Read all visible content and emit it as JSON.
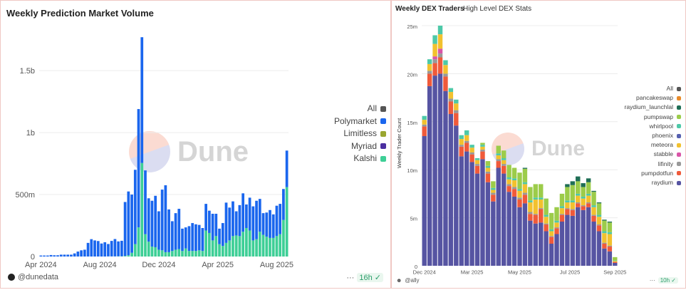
{
  "left": {
    "title": "Weekly Prediction Market Volume",
    "watermark": "Dune",
    "author": "@dunedata",
    "more": "···",
    "refresh": "16h",
    "legend": [
      {
        "name": "All",
        "color": "#555555"
      },
      {
        "name": "Polymarket",
        "color": "#1a66ee"
      },
      {
        "name": "Limitless",
        "color": "#9aa630"
      },
      {
        "name": "Myriad",
        "color": "#4b2fa0"
      },
      {
        "name": "Kalshi",
        "color": "#3ecf96"
      }
    ]
  },
  "right": {
    "title": "Weekly DEX Traders",
    "subtitle": "High Level DEX Stats",
    "watermark": "Dune",
    "author": "@ally",
    "more": "···",
    "refresh": "10h",
    "legend": [
      {
        "name": "All",
        "color": "#555555"
      },
      {
        "name": "pancakeswap",
        "color": "#e88a2a"
      },
      {
        "name": "raydium_launchlal",
        "color": "#1f6e55"
      },
      {
        "name": "pumpswap",
        "color": "#9ccc4a"
      },
      {
        "name": "whirlpool",
        "color": "#4dc9a8"
      },
      {
        "name": "phoenix",
        "color": "#5660b0"
      },
      {
        "name": "meteora",
        "color": "#f2c12e"
      },
      {
        "name": "stabble",
        "color": "#d955a8"
      },
      {
        "name": "lifinity",
        "color": "#999999"
      },
      {
        "name": "pumpdotfun",
        "color": "#f05a3a"
      },
      {
        "name": "raydium",
        "color": "#5654a2"
      }
    ]
  },
  "chart_data": [
    {
      "type": "bar",
      "stacked": true,
      "title": "Weekly Prediction Market Volume",
      "x_start": "2024-04-01",
      "x_interval": "week",
      "xticks": [
        "Apr 2024",
        "Aug 2024",
        "Dec 2024",
        "Apr 2025",
        "Aug 2025"
      ],
      "yticks": [
        "0",
        "500m",
        "1b",
        "1.5b"
      ],
      "ylim": [
        0,
        1800000000
      ],
      "grid": true,
      "legend": "right",
      "series": [
        {
          "name": "Kalshi",
          "color": "#3ecf96",
          "values_m": [
            0,
            0,
            0,
            0,
            0,
            0,
            0,
            0,
            0,
            0,
            0,
            0,
            0,
            0,
            0,
            0,
            0,
            0,
            0,
            0,
            1,
            1,
            1,
            2,
            2,
            5,
            10,
            30,
            100,
            235,
            755,
            180,
            120,
            80,
            75,
            55,
            50,
            35,
            35,
            45,
            55,
            60,
            45,
            65,
            45,
            45,
            45,
            50,
            45,
            210,
            190,
            130,
            165,
            100,
            85,
            110,
            130,
            165,
            170,
            165,
            200,
            230,
            210,
            130,
            140,
            200,
            175,
            160,
            150,
            150,
            165,
            180,
            295,
            560
          ]
        },
        {
          "name": "Polymarket",
          "color": "#1a66ee",
          "values_m": [
            8,
            8,
            8,
            12,
            10,
            10,
            15,
            15,
            15,
            15,
            25,
            40,
            50,
            55,
            110,
            140,
            130,
            125,
            105,
            115,
            100,
            125,
            140,
            120,
            125,
            435,
            515,
            470,
            600,
            955,
            1015,
            515,
            350,
            370,
            415,
            310,
            490,
            540,
            345,
            240,
            295,
            325,
            180,
            170,
            200,
            225,
            215,
            205,
            185,
            215,
            180,
            215,
            180,
            125,
            185,
            325,
            265,
            280,
            195,
            250,
            310,
            190,
            265,
            275,
            310,
            265,
            175,
            195,
            225,
            190,
            245,
            245,
            250,
            295
          ]
        }
      ]
    },
    {
      "type": "bar",
      "stacked": true,
      "title": "Weekly DEX Traders",
      "subtitle": "High Level DEX Stats",
      "ylabel": "Weekly Trader Count",
      "xticks": [
        "Dec 2024",
        "Mar 2025",
        "May 2025",
        "Jul 2025",
        "Sep 2025"
      ],
      "yticks": [
        "0",
        "5m",
        "10m",
        "15m",
        "20m",
        "25m"
      ],
      "ylim": [
        0,
        25000000
      ],
      "grid": true,
      "legend": "right",
      "series": [
        {
          "name": "raydium",
          "color": "#5654a2",
          "values_m": [
            13.5,
            18.7,
            19.8,
            20.0,
            18.2,
            15.8,
            14.6,
            11.4,
            11.9,
            10.8,
            9.6,
            11.1,
            8.7,
            6.7,
            10.2,
            9.6,
            7.7,
            7.2,
            6.1,
            6.5,
            4.7,
            4.4,
            4.5,
            3.6,
            2.3,
            3.3,
            4.6,
            5.3,
            5.2,
            6.1,
            5.8,
            6.1,
            4.6,
            3.6,
            1.8,
            1.5,
            0.3
          ]
        },
        {
          "name": "pumpdotfun",
          "color": "#f05a3a",
          "values_m": [
            1.0,
            1.3,
            1.3,
            1.7,
            1.5,
            1.3,
            1.3,
            1.0,
            0.9,
            0.8,
            0.8,
            0.8,
            0.9,
            0.7,
            0.7,
            0.8,
            0.6,
            0.8,
            0.8,
            0.9,
            0.7,
            0.9,
            1.4,
            0.7,
            0.7,
            0.6,
            0.7,
            0.6,
            0.6,
            0.4,
            0.4,
            0.4,
            0.6,
            0.6,
            0.5,
            0.5,
            0.1
          ]
        },
        {
          "name": "lifinity",
          "color": "#999999",
          "values_m": [
            0.2,
            0.3,
            0.4,
            0.4,
            0.3,
            0.3,
            0.3,
            0.2,
            0.2,
            0.2,
            0.2,
            0.2,
            0.2,
            0.2,
            0.2,
            0.2,
            0.2,
            0.2,
            0.2,
            0.2,
            0.2,
            0.1,
            0.1,
            0.1,
            0.1,
            0.1,
            0.1,
            0.1,
            0.1,
            0.1,
            0.1,
            0.1,
            0.1,
            0.1,
            0.1,
            0.1,
            0
          ]
        },
        {
          "name": "stabble",
          "color": "#d955a8",
          "values_m": [
            0,
            0,
            0.3,
            0.5,
            0,
            0,
            0,
            0,
            0,
            0,
            0,
            0,
            0,
            0,
            0,
            0,
            0,
            0,
            0,
            0,
            0,
            0,
            0,
            0,
            0,
            0,
            0,
            0,
            0,
            0,
            0,
            0,
            0,
            0,
            0,
            0,
            0
          ]
        },
        {
          "name": "meteora",
          "color": "#f2c12e",
          "values_m": [
            0.5,
            0.7,
            1.3,
            1.5,
            0.9,
            0.7,
            0.7,
            0.6,
            0.6,
            0.5,
            0.4,
            0.3,
            0.4,
            0.3,
            0.4,
            0.4,
            0.5,
            0.7,
            0.7,
            0.9,
            1.0,
            1.5,
            0.9,
            0.7,
            0.5,
            0.5,
            0.6,
            0.6,
            0.7,
            0.7,
            0.7,
            0.7,
            0.8,
            0.8,
            1.0,
            1.2,
            0.1
          ]
        },
        {
          "name": "whirlpool",
          "color": "#4dc9a8",
          "values_m": [
            0.4,
            0.5,
            0.9,
            0.9,
            0.5,
            0.4,
            0.4,
            0.4,
            0.5,
            0.3,
            0.2,
            0.2,
            0.2,
            0.2,
            0.2,
            0.2,
            0.2,
            0.2,
            0.2,
            0.2,
            0.2,
            0.2,
            0.2,
            0.2,
            0.2,
            0.2,
            0.2,
            0.2,
            0.2,
            0.2,
            0.2,
            0.2,
            0.2,
            0.2,
            0.2,
            0.2,
            0.05
          ]
        },
        {
          "name": "pumpswap",
          "color": "#9ccc4a",
          "values_m": [
            0,
            0,
            0,
            0,
            0,
            0,
            0,
            0,
            0,
            0,
            0,
            0.2,
            0.5,
            0.7,
            0.8,
            0.8,
            1.3,
            1.1,
            1.7,
            1.4,
            1.4,
            1.4,
            1.4,
            1.7,
            1.7,
            1.4,
            1.3,
            1.4,
            1.6,
            1.3,
            1.0,
            1.2,
            1.4,
            1.2,
            1.1,
            1.0,
            0.35
          ]
        },
        {
          "name": "raydium_launchlab",
          "color": "#1f6e55",
          "values_m": [
            0,
            0,
            0,
            0,
            0,
            0,
            0,
            0,
            0,
            0,
            0,
            0,
            0,
            0,
            0,
            0,
            0,
            0,
            0,
            0.1,
            0,
            0,
            0,
            0,
            0,
            0,
            0,
            0.3,
            0.4,
            0.5,
            0.4,
            0.4,
            0.1,
            0.1,
            0.1,
            0.1,
            0
          ]
        }
      ]
    }
  ]
}
